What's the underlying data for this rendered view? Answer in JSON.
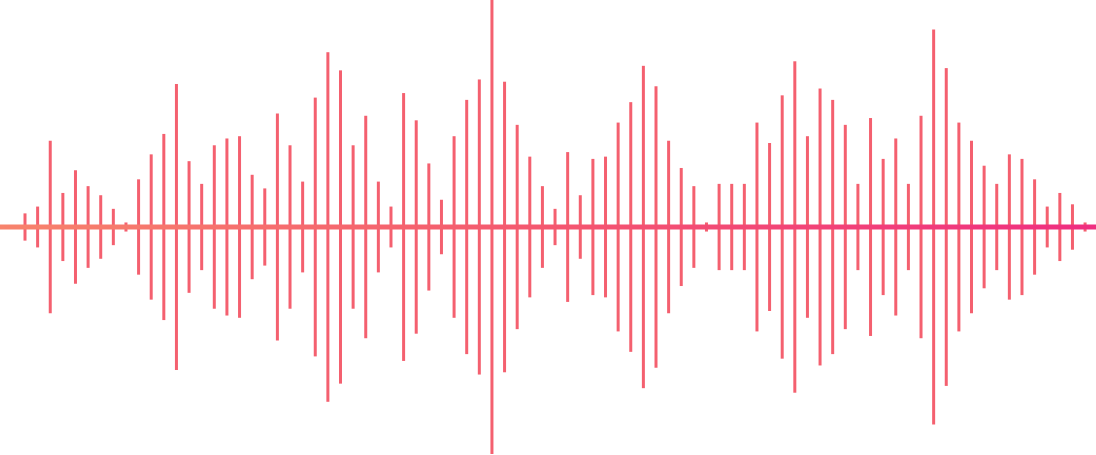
{
  "waveform": {
    "bar_color": "#f4606f",
    "baseline_gradient": [
      "#f7836c",
      "#f4576f",
      "#ef2e80"
    ],
    "amplitudes": [
      0.06,
      0.09,
      0.38,
      0.15,
      0.25,
      0.18,
      0.14,
      0.08,
      0.02,
      0.21,
      0.32,
      0.41,
      0.63,
      0.29,
      0.19,
      0.36,
      0.39,
      0.4,
      0.23,
      0.17,
      0.5,
      0.36,
      0.2,
      0.57,
      0.77,
      0.69,
      0.36,
      0.49,
      0.2,
      0.09,
      0.59,
      0.47,
      0.28,
      0.12,
      0.4,
      0.56,
      0.65,
      1.0,
      0.64,
      0.45,
      0.31,
      0.18,
      0.08,
      0.33,
      0.14,
      0.3,
      0.31,
      0.46,
      0.55,
      0.71,
      0.62,
      0.38,
      0.26,
      0.18,
      0.02,
      0.19,
      0.19,
      0.19,
      0.46,
      0.37,
      0.58,
      0.73,
      0.4,
      0.61,
      0.56,
      0.45,
      0.19,
      0.48,
      0.3,
      0.39,
      0.19,
      0.49,
      0.87,
      0.7,
      0.46,
      0.38,
      0.27,
      0.19,
      0.32,
      0.3,
      0.21,
      0.09,
      0.15,
      0.1,
      0.02
    ]
  }
}
